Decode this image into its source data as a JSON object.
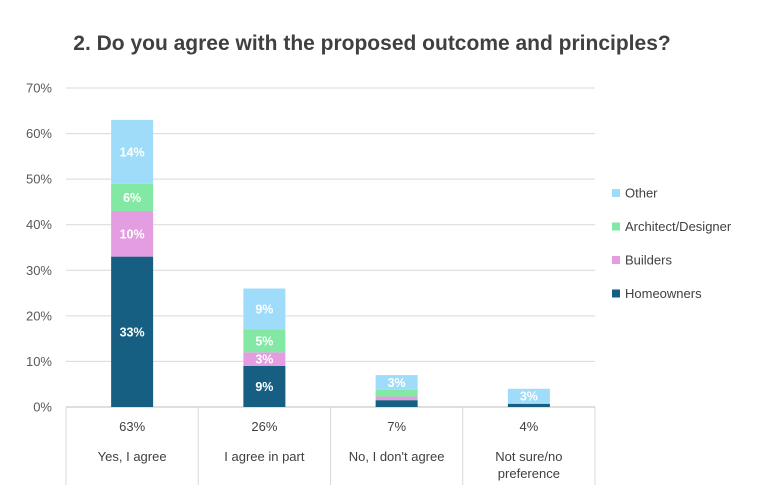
{
  "chart_data": {
    "type": "bar",
    "stacked": true,
    "title": "2. Do you agree with the proposed outcome and principles?",
    "categories": [
      "Yes, I agree",
      "I agree in part",
      "No, I don't agree",
      "Not sure/no preference"
    ],
    "category_lines": [
      [
        "Yes, I agree"
      ],
      [
        "I agree in part"
      ],
      [
        "No, I don't agree"
      ],
      [
        "Not sure/no",
        "preference"
      ]
    ],
    "totals_labels": [
      "63%",
      "26%",
      "7%",
      "4%"
    ],
    "series": [
      {
        "name": "Homeowners",
        "color": "#165e82",
        "values": [
          33,
          9,
          1.5,
          0.7
        ],
        "labels": [
          "33%",
          "9%",
          "",
          ""
        ]
      },
      {
        "name": "Builders",
        "color": "#e39de0",
        "values": [
          10,
          3,
          0.8,
          0.1
        ],
        "labels": [
          "10%",
          "3%",
          "",
          ""
        ]
      },
      {
        "name": "Architect/Designer",
        "color": "#82e8a3",
        "values": [
          6,
          5,
          1.5,
          0.1
        ],
        "labels": [
          "6%",
          "5%",
          "",
          ""
        ]
      },
      {
        "name": "Other",
        "color": "#9fdcf9",
        "values": [
          14,
          9,
          3.2,
          3.1
        ],
        "labels": [
          "14%",
          "9%",
          "3%",
          "3%"
        ]
      }
    ],
    "yticks": [
      "0%",
      "10%",
      "20%",
      "30%",
      "40%",
      "50%",
      "60%",
      "70%"
    ],
    "ylim": [
      0,
      70
    ],
    "grid": true,
    "legend": "right",
    "legend_order": [
      "Other",
      "Architect/Designer",
      "Builders",
      "Homeowners"
    ]
  }
}
